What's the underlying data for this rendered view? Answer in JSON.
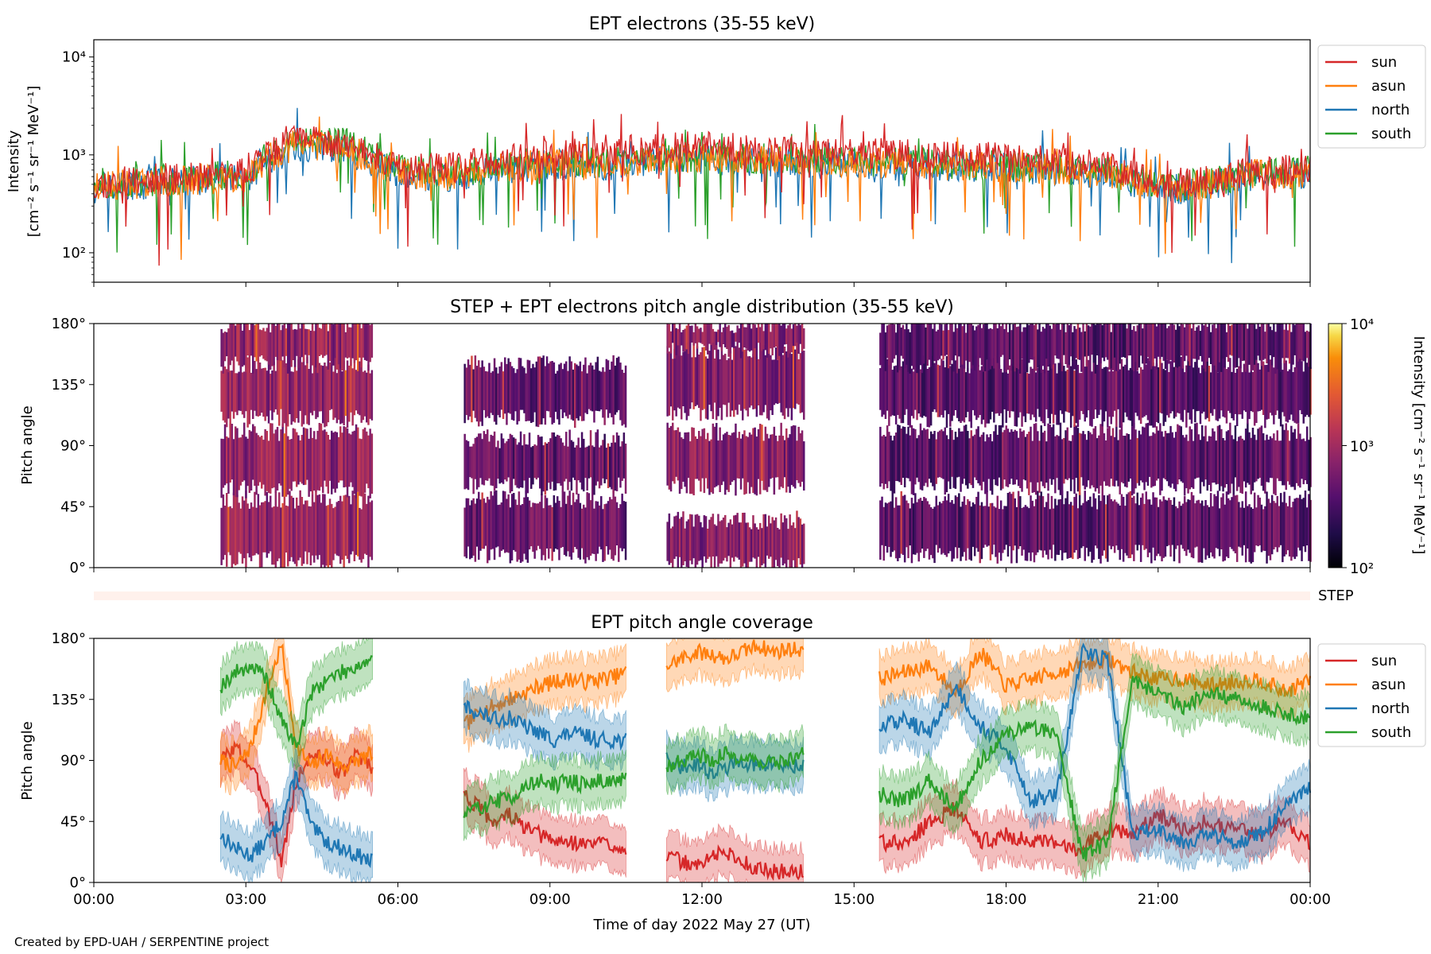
{
  "footer": {
    "credit": "Created by EPD-UAH / SERPENTINE project"
  },
  "chart_data": [
    {
      "type": "line",
      "title": "EPT electrons (35-55 keV)",
      "ylabel_lines": [
        "Intensity",
        "[cm⁻² s⁻¹ sr⁻¹ MeV⁻¹]"
      ],
      "yscale": "log",
      "ylim": [
        50,
        15000
      ],
      "xlim": [
        0,
        24
      ],
      "yticks": [
        {
          "value": 100,
          "label": "10²"
        },
        {
          "value": 1000,
          "label": "10³"
        },
        {
          "value": 10000,
          "label": "10⁴"
        }
      ],
      "legend": {
        "placement": "outside-right-top",
        "entries": [
          "sun",
          "asun",
          "north",
          "south"
        ]
      },
      "colors": {
        "sun": "#d62728",
        "asun": "#ff7f0e",
        "north": "#1f77b4",
        "south": "#2ca02c"
      },
      "series": [
        {
          "name": "sun",
          "x": [
            0,
            1,
            2,
            3,
            4,
            5,
            6,
            7,
            8,
            9,
            10,
            11,
            12,
            13,
            14,
            15,
            16,
            17,
            18,
            19,
            20,
            21,
            22,
            23,
            24
          ],
          "y": [
            500,
            560,
            600,
            650,
            1400,
            1250,
            800,
            720,
            900,
            1000,
            1050,
            1150,
            1250,
            1100,
            1050,
            1050,
            1000,
            950,
            950,
            850,
            750,
            500,
            550,
            680,
            700
          ]
        },
        {
          "name": "asun",
          "x": [
            0,
            1,
            2,
            3,
            4,
            5,
            6,
            7,
            8,
            9,
            10,
            11,
            12,
            13,
            14,
            15,
            16,
            17,
            18,
            19,
            20,
            21,
            22,
            23,
            24
          ],
          "y": [
            480,
            520,
            560,
            600,
            1300,
            1150,
            650,
            600,
            750,
            800,
            780,
            900,
            950,
            900,
            850,
            850,
            800,
            780,
            760,
            700,
            650,
            450,
            500,
            640,
            660
          ]
        },
        {
          "name": "north",
          "x": [
            0,
            1,
            2,
            3,
            4,
            5,
            6,
            7,
            8,
            9,
            10,
            11,
            12,
            13,
            14,
            15,
            16,
            17,
            18,
            19,
            20,
            21,
            22,
            23,
            24
          ],
          "y": [
            450,
            500,
            540,
            580,
            1200,
            1100,
            620,
            580,
            720,
            800,
            780,
            850,
            900,
            860,
            820,
            820,
            780,
            760,
            740,
            680,
            640,
            430,
            480,
            620,
            640
          ]
        },
        {
          "name": "south",
          "x": [
            0,
            1,
            2,
            3,
            4,
            5,
            6,
            7,
            8,
            9,
            10,
            11,
            12,
            13,
            14,
            15,
            16,
            17,
            18,
            19,
            20,
            21,
            22,
            23,
            24
          ],
          "y": [
            500,
            540,
            580,
            620,
            1500,
            1300,
            700,
            640,
            780,
            850,
            820,
            900,
            950,
            920,
            880,
            880,
            840,
            800,
            780,
            720,
            680,
            460,
            520,
            660,
            680
          ]
        }
      ]
    },
    {
      "type": "heatmap",
      "title": "STEP + EPT electrons pitch angle distribution (35-55 keV)",
      "ylabel": "Pitch angle",
      "xlim": [
        0,
        24
      ],
      "ylim": [
        0,
        180
      ],
      "yticks": [
        "0°",
        "45°",
        "90°",
        "135°",
        "180°"
      ],
      "colorbar": {
        "label": "Intensity [cm⁻² s⁻¹ sr⁻¹ MeV⁻¹]",
        "scale": "log",
        "range": [
          100,
          10000
        ],
        "ticks": [
          "10²",
          "10³",
          "10⁴"
        ],
        "colormap": "inferno"
      },
      "blocks": [
        {
          "x_start": 2.5,
          "x_end": 5.5,
          "bands": [
            [
              5,
              50
            ],
            [
              58,
              100
            ],
            [
              110,
              150
            ],
            [
              150,
              180
            ]
          ],
          "level": 0.45
        },
        {
          "x_start": 7.3,
          "x_end": 10.5,
          "bands": [
            [
              10,
              50
            ],
            [
              60,
              95
            ],
            [
              110,
              150
            ]
          ],
          "level": 0.33
        },
        {
          "x_start": 11.3,
          "x_end": 14.0,
          "bands": [
            [
              2,
              35
            ],
            [
              60,
              100
            ],
            [
              115,
              160
            ],
            [
              160,
              180
            ]
          ],
          "level": 0.42
        },
        {
          "x_start": 15.5,
          "x_end": 24.0,
          "bands": [
            [
              10,
              50
            ],
            [
              60,
              100
            ],
            [
              110,
              150
            ],
            [
              150,
              180
            ]
          ],
          "level": 0.3
        }
      ]
    },
    {
      "type": "bar",
      "name": "STEP",
      "label": "STEP",
      "xlim": [
        0,
        24
      ],
      "color": "#fff1ec"
    },
    {
      "type": "area",
      "title": "EPT pitch angle coverage",
      "ylabel": "Pitch angle",
      "xlabel": "Time of day 2022 May 27 (UT)",
      "xlim": [
        0,
        24
      ],
      "ylim": [
        0,
        180
      ],
      "yticks": [
        "0°",
        "45°",
        "90°",
        "135°",
        "180°"
      ],
      "xticks": [
        "00:00",
        "03:00",
        "06:00",
        "09:00",
        "12:00",
        "15:00",
        "18:00",
        "21:00",
        "00:00"
      ],
      "band_halfwidth": 17,
      "legend": {
        "placement": "outside-right-top",
        "entries": [
          "sun",
          "asun",
          "north",
          "south"
        ]
      },
      "colors": {
        "sun": "#d62728",
        "asun": "#ff7f0e",
        "north": "#1f77b4",
        "south": "#2ca02c"
      },
      "series": [
        {
          "name": "sun",
          "segments": [
            {
              "x": [
                2.5,
                2.8,
                3.1,
                3.4,
                3.7,
                4.0,
                4.3,
                4.6,
                4.9,
                5.2,
                5.5
              ],
              "y": [
                90,
                100,
                85,
                60,
                15,
                75,
                95,
                90,
                80,
                95,
                85
              ]
            },
            {
              "x": [
                7.3,
                7.6,
                7.9,
                8.2,
                8.5,
                8.8,
                9.1,
                9.4,
                9.7,
                10.0,
                10.3,
                10.5
              ],
              "y": [
                65,
                55,
                45,
                50,
                40,
                35,
                30,
                30,
                28,
                30,
                27,
                25
              ]
            },
            {
              "x": [
                11.3,
                11.6,
                11.9,
                12.2,
                12.5,
                12.8,
                13.1,
                13.4,
                13.7,
                14.0
              ],
              "y": [
                20,
                15,
                12,
                20,
                22,
                15,
                10,
                8,
                8,
                8
              ]
            },
            {
              "x": [
                15.5,
                16.0,
                16.5,
                17.0,
                17.5,
                18.0,
                18.5,
                19.0,
                19.5,
                20.0,
                20.5,
                21.0,
                21.5,
                22.0,
                22.5,
                23.0,
                23.5,
                24.0
              ],
              "y": [
                30,
                28,
                45,
                55,
                30,
                35,
                30,
                28,
                25,
                40,
                35,
                50,
                40,
                45,
                40,
                35,
                45,
                30
              ]
            }
          ]
        },
        {
          "name": "asun",
          "segments": [
            {
              "x": [
                2.5,
                2.8,
                3.1,
                3.4,
                3.7,
                4.0,
                4.3,
                4.6,
                4.9,
                5.2,
                5.5
              ],
              "y": [
                90,
                85,
                100,
                140,
                175,
                100,
                85,
                95,
                85,
                90,
                95
              ]
            },
            {
              "x": [
                7.3,
                7.6,
                7.9,
                8.2,
                8.5,
                8.8,
                9.1,
                9.4,
                9.7,
                10.0,
                10.3,
                10.5
              ],
              "y": [
                115,
                125,
                130,
                135,
                140,
                145,
                148,
                150,
                148,
                150,
                152,
                155
              ]
            },
            {
              "x": [
                11.3,
                11.6,
                11.9,
                12.2,
                12.5,
                12.8,
                13.1,
                13.4,
                13.7,
                14.0
              ],
              "y": [
                160,
                165,
                170,
                168,
                165,
                170,
                175,
                170,
                172,
                172
              ]
            },
            {
              "x": [
                15.5,
                16.0,
                16.5,
                17.0,
                17.5,
                18.0,
                18.5,
                19.0,
                19.5,
                20.0,
                20.5,
                21.0,
                21.5,
                22.0,
                22.5,
                23.0,
                23.5,
                24.0
              ],
              "y": [
                150,
                155,
                160,
                140,
                170,
                145,
                150,
                155,
                160,
                165,
                155,
                150,
                150,
                145,
                148,
                150,
                140,
                150
              ]
            }
          ]
        },
        {
          "name": "north",
          "segments": [
            {
              "x": [
                2.5,
                2.8,
                3.1,
                3.4,
                3.7,
                4.0,
                4.3,
                4.6,
                4.9,
                5.2,
                5.5
              ],
              "y": [
                35,
                25,
                20,
                30,
                45,
                80,
                40,
                30,
                25,
                20,
                15
              ]
            },
            {
              "x": [
                7.3,
                7.6,
                7.9,
                8.2,
                8.5,
                8.8,
                9.1,
                9.4,
                9.7,
                10.0,
                10.3,
                10.5
              ],
              "y": [
                130,
                125,
                120,
                122,
                115,
                110,
                105,
                110,
                108,
                105,
                105,
                105
              ]
            },
            {
              "x": [
                11.3,
                11.6,
                11.9,
                12.2,
                12.5,
                12.8,
                13.1,
                13.4,
                13.7,
                14.0
              ],
              "y": [
                90,
                85,
                88,
                80,
                85,
                90,
                85,
                88,
                85,
                85
              ]
            },
            {
              "x": [
                15.5,
                16.0,
                16.5,
                17.0,
                17.5,
                18.0,
                18.5,
                19.0,
                19.5,
                20.0,
                20.5,
                21.0,
                21.5,
                22.0,
                22.5,
                23.0,
                23.5,
                24.0
              ],
              "y": [
                115,
                120,
                110,
                145,
                115,
                100,
                60,
                65,
                170,
                165,
                35,
                40,
                30,
                35,
                30,
                35,
                55,
                70
              ]
            }
          ]
        },
        {
          "name": "south",
          "segments": [
            {
              "x": [
                2.5,
                2.8,
                3.1,
                3.4,
                3.7,
                4.0,
                4.3,
                4.6,
                4.9,
                5.2,
                5.5
              ],
              "y": [
                145,
                155,
                160,
                150,
                120,
                100,
                140,
                150,
                155,
                160,
                165
              ]
            },
            {
              "x": [
                7.3,
                7.6,
                7.9,
                8.2,
                8.5,
                8.8,
                9.1,
                9.4,
                9.7,
                10.0,
                10.3,
                10.5
              ],
              "y": [
                50,
                55,
                60,
                62,
                70,
                75,
                72,
                75,
                72,
                75,
                75,
                75
              ]
            },
            {
              "x": [
                11.3,
                11.6,
                11.9,
                12.2,
                12.5,
                12.8,
                13.1,
                13.4,
                13.7,
                14.0
              ],
              "y": [
                85,
                90,
                95,
                90,
                95,
                92,
                90,
                88,
                90,
                95
              ]
            },
            {
              "x": [
                15.5,
                16.0,
                16.5,
                17.0,
                17.5,
                18.0,
                18.5,
                19.0,
                19.5,
                20.0,
                20.5,
                21.0,
                21.5,
                22.0,
                22.5,
                23.0,
                23.5,
                24.0
              ],
              "y": [
                65,
                60,
                75,
                55,
                90,
                110,
                115,
                110,
                20,
                30,
                150,
                140,
                130,
                140,
                135,
                130,
                125,
                120
              ]
            }
          ]
        }
      ]
    }
  ]
}
